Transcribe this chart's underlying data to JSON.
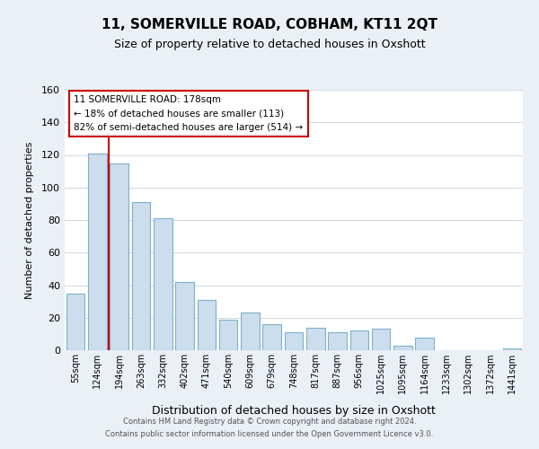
{
  "title": "11, SOMERVILLE ROAD, COBHAM, KT11 2QT",
  "subtitle": "Size of property relative to detached houses in Oxshott",
  "xlabel": "Distribution of detached houses by size in Oxshott",
  "ylabel": "Number of detached properties",
  "bar_labels": [
    "55sqm",
    "124sqm",
    "194sqm",
    "263sqm",
    "332sqm",
    "402sqm",
    "471sqm",
    "540sqm",
    "609sqm",
    "679sqm",
    "748sqm",
    "817sqm",
    "887sqm",
    "956sqm",
    "1025sqm",
    "1095sqm",
    "1164sqm",
    "1233sqm",
    "1302sqm",
    "1372sqm",
    "1441sqm"
  ],
  "bar_values": [
    35,
    121,
    115,
    91,
    81,
    42,
    31,
    19,
    23,
    16,
    11,
    14,
    11,
    12,
    13,
    3,
    8,
    0,
    0,
    0,
    1
  ],
  "bar_color": "#ccdded",
  "bar_edge_color": "#7fb0cc",
  "vline_color": "#cc0000",
  "vline_pos": 1.5,
  "ylim": [
    0,
    160
  ],
  "yticks": [
    0,
    20,
    40,
    60,
    80,
    100,
    120,
    140,
    160
  ],
  "annotation_title": "11 SOMERVILLE ROAD: 178sqm",
  "annotation_line1": "← 18% of detached houses are smaller (113)",
  "annotation_line2": "82% of semi-detached houses are larger (514) →",
  "footer_line1": "Contains HM Land Registry data © Crown copyright and database right 2024.",
  "footer_line2": "Contains public sector information licensed under the Open Government Licence v3.0.",
  "background_color": "#eaf0f6",
  "plot_bg_color": "#ffffff",
  "grid_color": "#d0d8e0"
}
